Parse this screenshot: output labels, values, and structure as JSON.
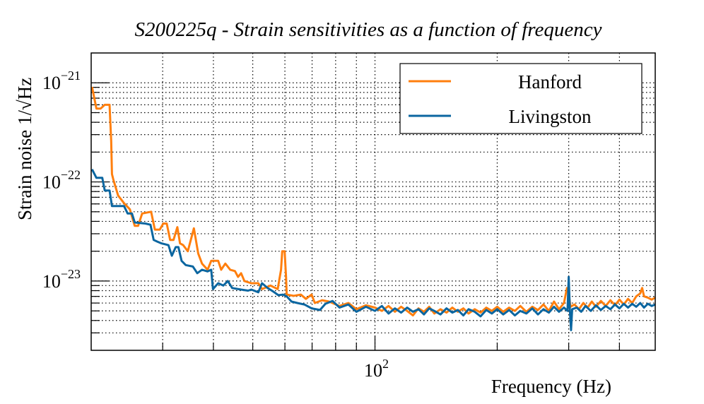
{
  "chart_data": {
    "type": "line",
    "title": "S200225q - Strain sensitivities as a function of frequency",
    "xlabel": "Frequency (Hz)",
    "ylabel": "Strain noise 1/√Hz",
    "x_scale": "log",
    "y_scale": "log",
    "xlim": [
      20,
      490
    ],
    "ylim": [
      2e-24,
      2e-21
    ],
    "grid": true,
    "legend_position": "top-right",
    "x_tick_labels": [
      {
        "value": 100,
        "base": "10",
        "exp": "2"
      }
    ],
    "y_tick_labels": [
      {
        "value": 1e-21,
        "base": "10",
        "exp": "−21"
      },
      {
        "value": 1e-22,
        "base": "10",
        "exp": "−22"
      },
      {
        "value": 1e-23,
        "base": "10",
        "exp": "−23"
      }
    ],
    "series": [
      {
        "name": "Hanford",
        "color": "#ff7f0e",
        "points": [
          [
            20.1,
            9.1e-22
          ],
          [
            20.6,
            5.5e-22
          ],
          [
            21.1,
            5.5e-22
          ],
          [
            21.6,
            6e-22
          ],
          [
            22.2,
            6e-22
          ],
          [
            22.4,
            2.6e-22
          ],
          [
            22.5,
            1.2e-22
          ],
          [
            22.7,
            1.04e-22
          ],
          [
            23.3,
            7.3e-23
          ],
          [
            24.1,
            6.1e-23
          ],
          [
            24.9,
            5.3e-23
          ],
          [
            25.6,
            3.6e-23
          ],
          [
            26.1,
            3.6e-23
          ],
          [
            26.7,
            4.8e-23
          ],
          [
            28.1,
            5e-23
          ],
          [
            28.7,
            3.3e-23
          ],
          [
            29.5,
            3.3e-23
          ],
          [
            30.1,
            3.8e-23
          ],
          [
            30.7,
            3.8e-23
          ],
          [
            31.3,
            2.6e-23
          ],
          [
            31.9,
            2.6e-23
          ],
          [
            32.6,
            3.5e-23
          ],
          [
            33.1,
            2.4e-23
          ],
          [
            33.7,
            2.3e-23
          ],
          [
            34.6,
            2e-23
          ],
          [
            35.8,
            3.4e-23
          ],
          [
            36.7,
            1.9e-23
          ],
          [
            37.5,
            1.5e-23
          ],
          [
            38.7,
            1.3e-23
          ],
          [
            39.5,
            1.6e-23
          ],
          [
            41.1,
            1.6e-23
          ],
          [
            41.8,
            1.3e-23
          ],
          [
            42.8,
            1.5e-23
          ],
          [
            44.0,
            1.3e-23
          ],
          [
            45.2,
            1.26e-23
          ],
          [
            46.0,
            1.1e-23
          ],
          [
            46.8,
            1.2e-23
          ],
          [
            47.7,
            1e-23
          ],
          [
            49.6,
            9.5e-24
          ],
          [
            51.6,
            9.5e-24
          ],
          [
            52.7,
            8.3e-24
          ],
          [
            55.3,
            9e-24
          ],
          [
            57.6,
            8.3e-24
          ],
          [
            58.7,
            1.3e-23
          ],
          [
            59.1,
            2e-23
          ],
          [
            59.9,
            2e-23
          ],
          [
            60.4,
            1.1e-23
          ],
          [
            60.6,
            7.3e-24
          ],
          [
            63.1,
            7.1e-24
          ],
          [
            65.7,
            7.3e-24
          ],
          [
            67.6,
            6.6e-24
          ],
          [
            69.8,
            7.3e-24
          ],
          [
            71.1,
            6e-24
          ],
          [
            74.1,
            6.4e-24
          ],
          [
            77.1,
            6.2e-24
          ],
          [
            81.8,
            5.6e-24
          ],
          [
            86,
            6e-24
          ],
          [
            90,
            5.2e-24
          ],
          [
            95,
            5.7e-24
          ],
          [
            100,
            5.4e-24
          ],
          [
            104,
            5e-24
          ],
          [
            108,
            5.6e-24
          ],
          [
            112,
            4.9e-24
          ],
          [
            116,
            5.5e-24
          ],
          [
            120,
            5e-24
          ],
          [
            124,
            4.5e-24
          ],
          [
            128,
            5.3e-24
          ],
          [
            132,
            4.9e-24
          ],
          [
            136,
            5.5e-24
          ],
          [
            140,
            4.7e-24
          ],
          [
            145,
            5.2e-24
          ],
          [
            150,
            4.8e-24
          ],
          [
            155,
            5.4e-24
          ],
          [
            160,
            4.9e-24
          ],
          [
            165,
            5.3e-24
          ],
          [
            170,
            4.7e-24
          ],
          [
            176,
            5.2e-24
          ],
          [
            182,
            4.8e-24
          ],
          [
            188,
            5.4e-24
          ],
          [
            194,
            5e-24
          ],
          [
            200,
            5.5e-24
          ],
          [
            207,
            4.9e-24
          ],
          [
            214,
            5.4e-24
          ],
          [
            221,
            5e-24
          ],
          [
            228,
            5.6e-24
          ],
          [
            236,
            4.9e-24
          ],
          [
            244,
            5.5e-24
          ],
          [
            252,
            5.1e-24
          ],
          [
            260,
            5.8e-24
          ],
          [
            268,
            5e-24
          ],
          [
            276,
            6.2e-24
          ],
          [
            284,
            5.2e-24
          ],
          [
            292,
            6e-24
          ],
          [
            297,
            8.5e-24
          ],
          [
            300,
            7.5e-24
          ],
          [
            303,
            5.5e-24
          ],
          [
            310,
            5.8e-24
          ],
          [
            318,
            5.2e-24
          ],
          [
            326,
            6e-24
          ],
          [
            334,
            5.4e-24
          ],
          [
            342,
            6.2e-24
          ],
          [
            350,
            5.5e-24
          ],
          [
            360,
            6.3e-24
          ],
          [
            370,
            5.6e-24
          ],
          [
            380,
            6.4e-24
          ],
          [
            390,
            5.7e-24
          ],
          [
            400,
            6.5e-24
          ],
          [
            410,
            5.8e-24
          ],
          [
            420,
            6.6e-24
          ],
          [
            430,
            6e-24
          ],
          [
            440,
            7e-24
          ],
          [
            450,
            7.5e-24
          ],
          [
            455,
            8.5e-24
          ],
          [
            460,
            7e-24
          ],
          [
            470,
            6.8e-24
          ],
          [
            480,
            6.5e-24
          ],
          [
            490,
            6.8e-24
          ]
        ]
      },
      {
        "name": "Livingston",
        "color": "#0b66a0",
        "points": [
          [
            20.1,
            1.34e-22
          ],
          [
            20.6,
            1.1e-22
          ],
          [
            21.3,
            1.1e-22
          ],
          [
            21.6,
            8.2e-23
          ],
          [
            22.2,
            8.2e-23
          ],
          [
            22.5,
            5.7e-23
          ],
          [
            24.1,
            5.7e-23
          ],
          [
            24.6,
            4.8e-23
          ],
          [
            25.2,
            4.8e-23
          ],
          [
            25.6,
            3.9e-23
          ],
          [
            27.2,
            3.8e-23
          ],
          [
            28.0,
            3.7e-23
          ],
          [
            28.5,
            2.6e-23
          ],
          [
            29.1,
            2.5e-23
          ],
          [
            29.8,
            2.4e-23
          ],
          [
            31.0,
            2.3e-23
          ],
          [
            31.6,
            1.8e-23
          ],
          [
            32.3,
            2.2e-23
          ],
          [
            32.8,
            2.2e-23
          ],
          [
            33.4,
            1.6e-23
          ],
          [
            34.2,
            1.45e-23
          ],
          [
            35.6,
            1.4e-23
          ],
          [
            36.5,
            1.2e-23
          ],
          [
            37.5,
            1.3e-23
          ],
          [
            38.7,
            1.25e-23
          ],
          [
            39.5,
            1.3e-23
          ],
          [
            39.9,
            8.3e-24
          ],
          [
            41.1,
            9.5e-24
          ],
          [
            42.3,
            9e-24
          ],
          [
            43.4,
            1e-23
          ],
          [
            44.5,
            8.5e-24
          ],
          [
            46.8,
            8.2e-24
          ],
          [
            48.7,
            8e-24
          ],
          [
            49.6,
            8.2e-24
          ],
          [
            51.6,
            7.7e-24
          ],
          [
            52.7,
            9.5e-24
          ],
          [
            54.4,
            8.5e-24
          ],
          [
            56.0,
            7.9e-24
          ],
          [
            57.8,
            7.2e-24
          ],
          [
            59.4,
            7.3e-24
          ],
          [
            60.6,
            7e-24
          ],
          [
            62.3,
            6.2e-24
          ],
          [
            64.4,
            6e-24
          ],
          [
            67.0,
            5.8e-24
          ],
          [
            69.8,
            5.3e-24
          ],
          [
            73.2,
            5.1e-24
          ],
          [
            75.5,
            5.9e-24
          ],
          [
            78.6,
            6.3e-24
          ],
          [
            81.8,
            5.4e-24
          ],
          [
            86,
            5.8e-24
          ],
          [
            90,
            4.9e-24
          ],
          [
            95,
            5.5e-24
          ],
          [
            100,
            5e-24
          ],
          [
            104,
            5.6e-24
          ],
          [
            108,
            4.7e-24
          ],
          [
            112,
            5.3e-24
          ],
          [
            116,
            4.8e-24
          ],
          [
            120,
            5.4e-24
          ],
          [
            124,
            4.9e-24
          ],
          [
            128,
            5.2e-24
          ],
          [
            132,
            4.6e-24
          ],
          [
            136,
            5.3e-24
          ],
          [
            140,
            5e-24
          ],
          [
            145,
            4.6e-24
          ],
          [
            150,
            5.3e-24
          ],
          [
            155,
            4.8e-24
          ],
          [
            160,
            5.1e-24
          ],
          [
            165,
            4.5e-24
          ],
          [
            170,
            5.2e-24
          ],
          [
            176,
            4.9e-24
          ],
          [
            182,
            4.4e-24
          ],
          [
            188,
            5.1e-24
          ],
          [
            194,
            4.7e-24
          ],
          [
            200,
            5.2e-24
          ],
          [
            207,
            4.6e-24
          ],
          [
            214,
            5.1e-24
          ],
          [
            221,
            4.5e-24
          ],
          [
            228,
            5e-24
          ],
          [
            236,
            4.7e-24
          ],
          [
            244,
            5.3e-24
          ],
          [
            252,
            4.6e-24
          ],
          [
            260,
            5.2e-24
          ],
          [
            268,
            4.8e-24
          ],
          [
            276,
            5.5e-24
          ],
          [
            284,
            4.9e-24
          ],
          [
            292,
            5.4e-24
          ],
          [
            298,
            5e-24
          ],
          [
            300,
            1.1e-23
          ],
          [
            302,
            5e-24
          ],
          [
            304,
            3.2e-24
          ],
          [
            306,
            5.2e-24
          ],
          [
            314,
            5.4e-24
          ],
          [
            322,
            4.9e-24
          ],
          [
            330,
            5.6e-24
          ],
          [
            340,
            5e-24
          ],
          [
            350,
            5.7e-24
          ],
          [
            360,
            5.1e-24
          ],
          [
            370,
            5.6e-24
          ],
          [
            380,
            5.2e-24
          ],
          [
            390,
            5.8e-24
          ],
          [
            400,
            5.3e-24
          ],
          [
            410,
            5.9e-24
          ],
          [
            420,
            5.4e-24
          ],
          [
            430,
            5.9e-24
          ],
          [
            440,
            5.5e-24
          ],
          [
            450,
            6e-24
          ],
          [
            460,
            5.4e-24
          ],
          [
            470,
            5.9e-24
          ],
          [
            480,
            5.6e-24
          ],
          [
            490,
            5.8e-24
          ]
        ]
      }
    ]
  }
}
